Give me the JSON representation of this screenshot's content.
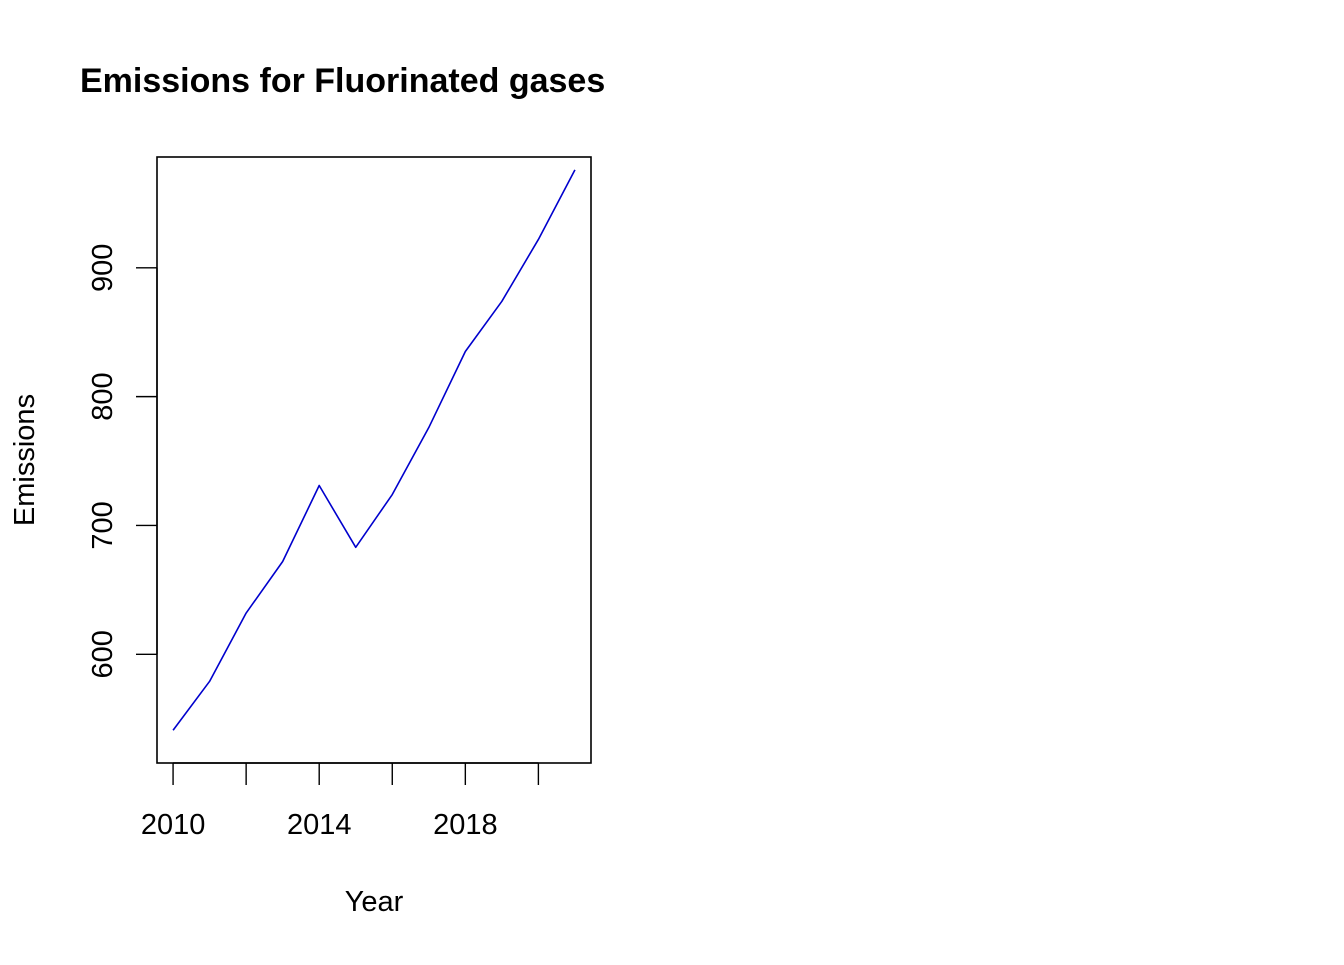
{
  "chart_data": {
    "type": "line",
    "title": "Emissions for Fluorinated gases",
    "xlabel": "Year",
    "ylabel": "Emissions",
    "x": [
      2010,
      2011,
      2012,
      2013,
      2014,
      2015,
      2016,
      2017,
      2018,
      2019,
      2020,
      2021
    ],
    "series": [
      {
        "name": "",
        "color": "#0000cd",
        "values": [
          541,
          579,
          632,
          672,
          731,
          683,
          724,
          776,
          835,
          874,
          922,
          976
        ]
      }
    ],
    "xlim": [
      2009.56,
      2021.44
    ],
    "ylim": [
      515.6,
      986.0
    ],
    "x_ticks": [
      2010,
      2012,
      2014,
      2016,
      2018,
      2020
    ],
    "x_tick_labels": [
      "2010",
      "",
      "2014",
      "",
      "2018",
      ""
    ],
    "y_ticks": [
      600,
      700,
      800,
      900
    ],
    "y_tick_labels": [
      "600",
      "700",
      "800",
      "900"
    ],
    "grid": false,
    "legend": "none"
  }
}
